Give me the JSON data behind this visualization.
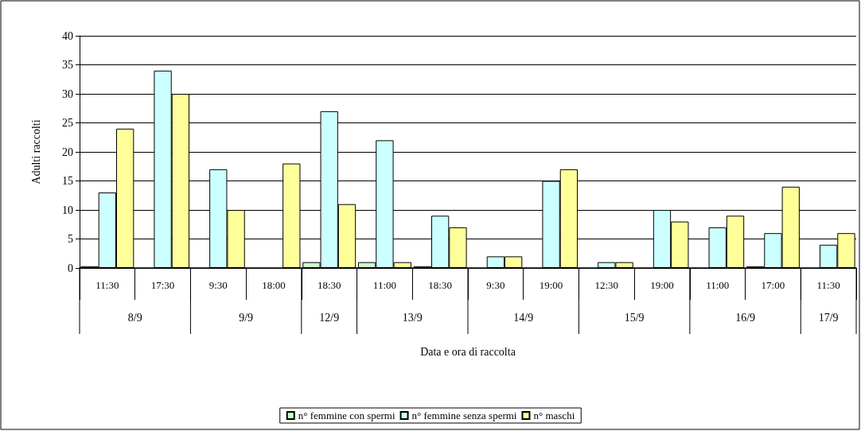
{
  "chart_data": {
    "type": "bar",
    "xlabel": "Data e ora di raccolta",
    "ylabel": "Adulti raccolti",
    "categories": [
      "11:30",
      "17:30",
      "9:30",
      "18:00",
      "18:30",
      "11:00",
      "18:30",
      "9:30",
      "19:00",
      "12:30",
      "19:00",
      "11:00",
      "17:00",
      "11:30"
    ],
    "series": [
      {
        "name": "n° femmine con spermi",
        "color": "#ccffcc",
        "values": [
          0.3,
          0,
          0,
          0,
          1,
          1,
          0.3,
          0,
          0,
          0,
          0,
          0,
          0.3,
          0
        ]
      },
      {
        "name": "n° femmine senza spermi",
        "color": "#ccffff",
        "values": [
          13,
          34,
          17,
          0,
          27,
          22,
          9,
          2,
          15,
          1,
          10,
          7,
          6,
          4
        ]
      },
      {
        "name": "n° maschi",
        "color": "#ffff99",
        "values": [
          24,
          30,
          10,
          18,
          11,
          1,
          7,
          2,
          17,
          1,
          8,
          9,
          14,
          6
        ]
      }
    ],
    "annotations": [
      "8/9",
      "9/9",
      "12/9",
      "13/9",
      "14/9",
      "15/9",
      "16/9",
      "17/9"
    ],
    "ylim": [
      0,
      40
    ],
    "yticks": [
      0,
      5,
      10,
      15,
      20,
      25,
      30,
      35,
      40
    ],
    "grid": "y",
    "legend": "bottom"
  }
}
